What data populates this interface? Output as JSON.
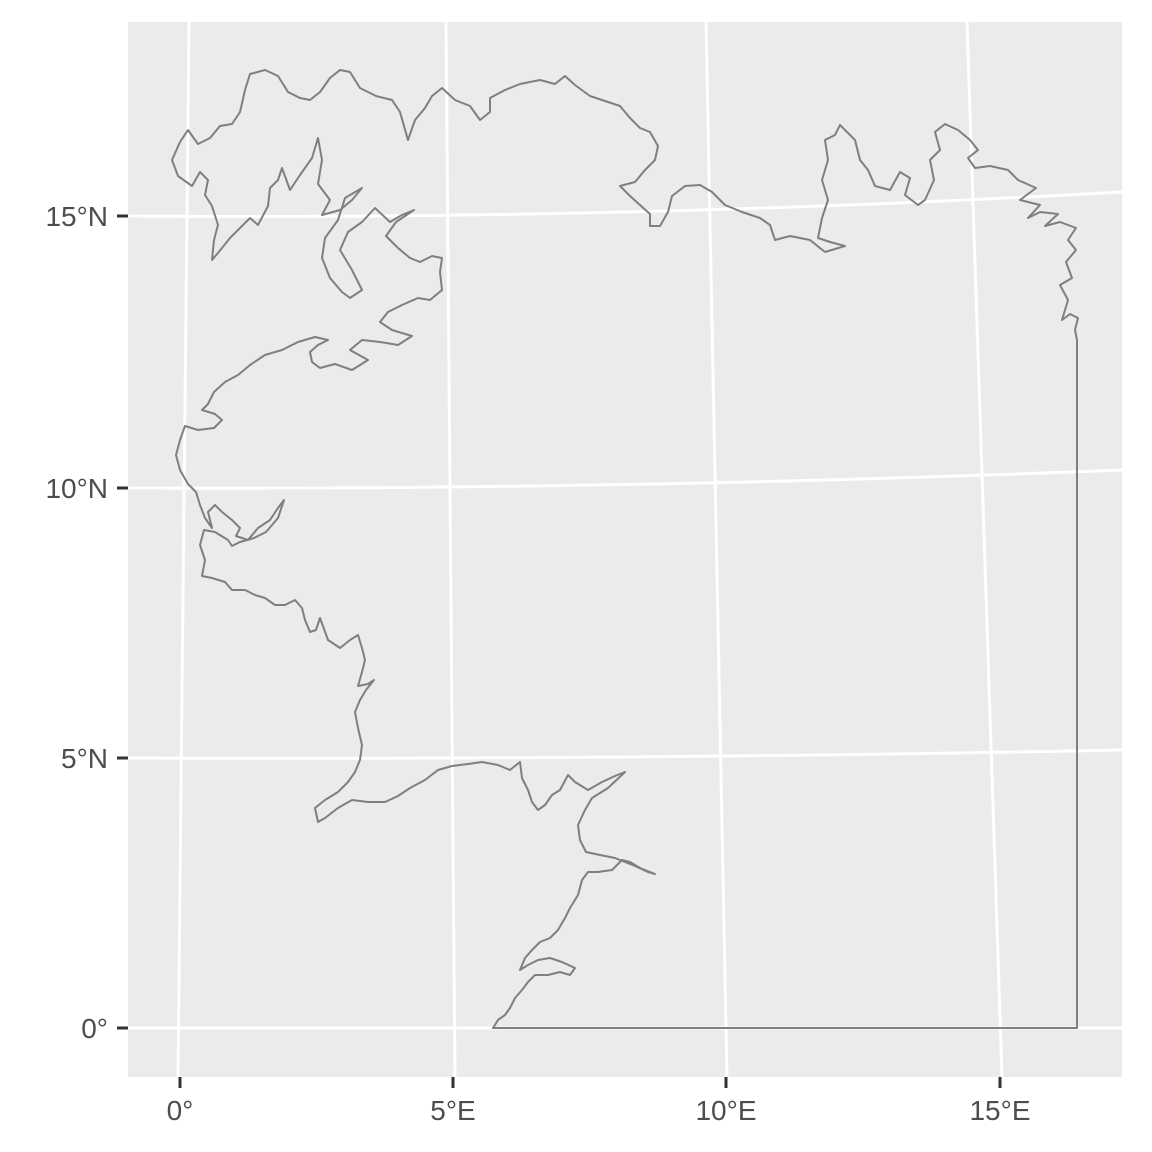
{
  "map": {
    "panel_background": "#ebebeb",
    "grid_color": "#ffffff",
    "outline_color": "#7f7f7f",
    "axis_text_color": "#4d4d4d",
    "y_axis": {
      "labels": [
        "15°N",
        "10°N",
        "5°N",
        "0°"
      ]
    },
    "x_axis": {
      "labels": [
        "0°",
        "5°E",
        "10°E",
        "15°E"
      ]
    }
  }
}
